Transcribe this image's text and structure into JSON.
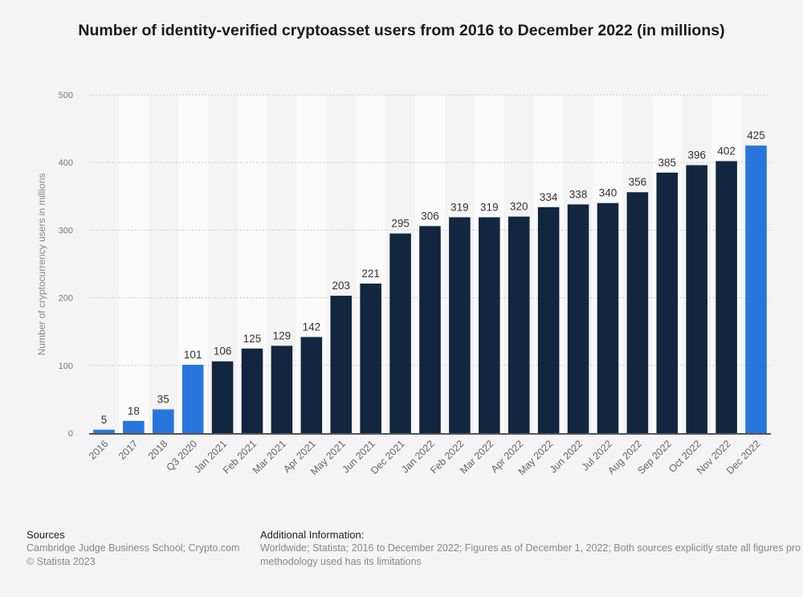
{
  "chart_data": {
    "type": "bar",
    "title": "Number of identity-verified cryptoasset users from 2016 to December 2022 (in millions)",
    "xlabel": "",
    "ylabel": "Number of cryptocurrency users in millions",
    "ylim": [
      0,
      500
    ],
    "yticks": [
      0,
      100,
      200,
      300,
      400,
      500
    ],
    "grid": true,
    "legend": "none",
    "categories": [
      "2016",
      "2017",
      "2018",
      "Q3 2020",
      "Jan 2021",
      "Feb 2021",
      "Mar 2021",
      "Apr 2021",
      "May 2021",
      "Jun 2021",
      "Dec 2021",
      "Jan 2022",
      "Feb 2022",
      "Mar 2022",
      "Apr 2022",
      "May 2022",
      "Jun 2022",
      "Jul 2022",
      "Aug 2022",
      "Sep 2022",
      "Oct 2022",
      "Nov 2022",
      "Dec 2022"
    ],
    "values": [
      5,
      18,
      35,
      101,
      106,
      125,
      129,
      142,
      203,
      221,
      295,
      306,
      319,
      319,
      320,
      334,
      338,
      340,
      356,
      385,
      396,
      402,
      425
    ],
    "highlight_indices": [
      0,
      1,
      2,
      3,
      22
    ],
    "colors": {
      "bar": "#12263f",
      "highlight": "#2876dd",
      "axis": "#555555",
      "grid": "#cccccc",
      "tick_text": "#666666",
      "label_text": "#333333"
    }
  },
  "footer": {
    "sources_heading": "Sources",
    "sources_line1": "Cambridge Judge Business School; Crypto.com",
    "sources_line2": "© Statista 2023",
    "additional_heading": "Additional Information:",
    "additional_line1": "Worldwide; Statista; 2016 to December 2022; Figures as of December 1, 2022; Both sources explicitly state all figures pro",
    "additional_line2": "methodology used has its limitations"
  }
}
